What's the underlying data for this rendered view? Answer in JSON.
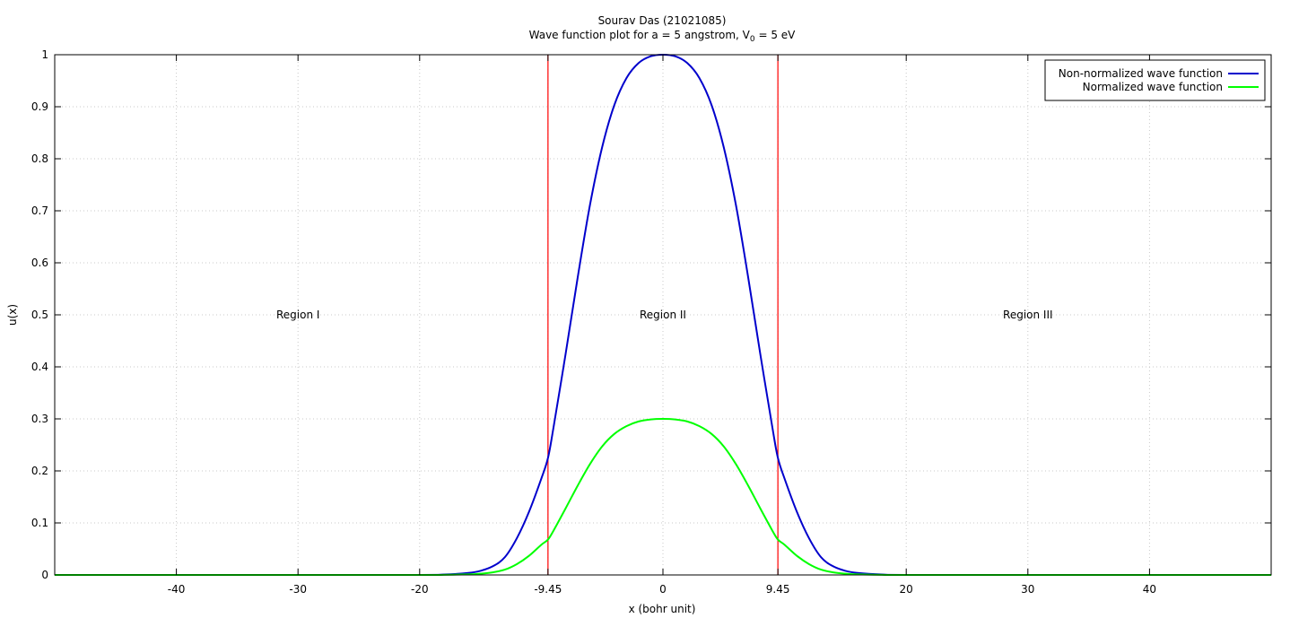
{
  "chart_data": {
    "type": "line",
    "title_line1": "Sourav Das (21021085)",
    "title_line2_prefix": "Wave function plot for a = 5 angstrom, V",
    "title_line2_subscript": "0",
    "title_line2_suffix": " = 5 eV",
    "xlabel": "x (bohr unit)",
    "ylabel": "u(x)",
    "xlim": [
      -50,
      50
    ],
    "ylim": [
      0,
      1
    ],
    "grid": true,
    "legend_position": "top-right",
    "x_ticks": [
      {
        "value": -40,
        "label": "-40"
      },
      {
        "value": -30,
        "label": "-30"
      },
      {
        "value": -20,
        "label": "-20"
      },
      {
        "value": -9.45,
        "label": "-9.45"
      },
      {
        "value": 0,
        "label": "0"
      },
      {
        "value": 9.45,
        "label": "9.45"
      },
      {
        "value": 20,
        "label": "20"
      },
      {
        "value": 30,
        "label": "30"
      },
      {
        "value": 40,
        "label": "40"
      }
    ],
    "y_ticks": [
      {
        "value": 0,
        "label": "0"
      },
      {
        "value": 0.1,
        "label": "0.1"
      },
      {
        "value": 0.2,
        "label": "0.2"
      },
      {
        "value": 0.3,
        "label": "0.3"
      },
      {
        "value": 0.4,
        "label": "0.4"
      },
      {
        "value": 0.5,
        "label": "0.5"
      },
      {
        "value": 0.6,
        "label": "0.6"
      },
      {
        "value": 0.7,
        "label": "0.7"
      },
      {
        "value": 0.8,
        "label": "0.8"
      },
      {
        "value": 0.9,
        "label": "0.9"
      },
      {
        "value": 1,
        "label": "1"
      }
    ],
    "vertical_lines": [
      {
        "x": -9.45,
        "color": "#ff0000"
      },
      {
        "x": 9.45,
        "color": "#ff0000"
      }
    ],
    "annotations": [
      {
        "text": "Region I",
        "x": -30,
        "y": 0.5
      },
      {
        "text": "Region II",
        "x": 0,
        "y": 0.5
      },
      {
        "text": "Region III",
        "x": 30,
        "y": 0.5
      }
    ],
    "series": [
      {
        "name": "Non-normalized wave function",
        "color": "#0000cc",
        "x": [
          -50,
          -40,
          -30,
          -20,
          -18,
          -16,
          -15,
          -14,
          -13,
          -12,
          -11,
          -10,
          -9.45,
          -9,
          -8,
          -7,
          -6,
          -5,
          -4,
          -3,
          -2,
          -1,
          0,
          1,
          2,
          3,
          4,
          5,
          6,
          7,
          8,
          9,
          9.45,
          10,
          11,
          12,
          13,
          14,
          15,
          16,
          18,
          20,
          30,
          40,
          50
        ],
        "values": [
          0,
          0,
          0,
          0.0001,
          0.0008,
          0.0038,
          0.0079,
          0.0165,
          0.034,
          0.071,
          0.122,
          0.185,
          0.225,
          0.283,
          0.425,
          0.573,
          0.711,
          0.822,
          0.903,
          0.955,
          0.984,
          0.997,
          1.0,
          0.997,
          0.984,
          0.955,
          0.903,
          0.822,
          0.711,
          0.573,
          0.425,
          0.283,
          0.225,
          0.185,
          0.122,
          0.071,
          0.034,
          0.0165,
          0.0079,
          0.0038,
          0.0008,
          0.0001,
          0,
          0,
          0
        ]
      },
      {
        "name": "Normalized wave function",
        "color": "#00ff00",
        "x": [
          -50,
          -40,
          -30,
          -20,
          -18,
          -16,
          -15,
          -14,
          -13,
          -12,
          -11,
          -10,
          -9.45,
          -9,
          -8,
          -7,
          -6,
          -5,
          -4,
          -3,
          -2,
          -1,
          0,
          1,
          2,
          3,
          4,
          5,
          6,
          7,
          8,
          9,
          9.45,
          10,
          11,
          12,
          13,
          14,
          15,
          16,
          18,
          20,
          30,
          40,
          50
        ],
        "values": [
          0,
          0,
          0,
          0,
          0.0002,
          0.0011,
          0.0024,
          0.005,
          0.0102,
          0.021,
          0.037,
          0.058,
          0.068,
          0.085,
          0.128,
          0.172,
          0.213,
          0.247,
          0.271,
          0.286,
          0.295,
          0.299,
          0.3,
          0.299,
          0.295,
          0.286,
          0.271,
          0.247,
          0.213,
          0.172,
          0.128,
          0.085,
          0.068,
          0.058,
          0.037,
          0.021,
          0.0102,
          0.005,
          0.0024,
          0.0011,
          0.0002,
          0,
          0,
          0,
          0
        ]
      }
    ]
  }
}
